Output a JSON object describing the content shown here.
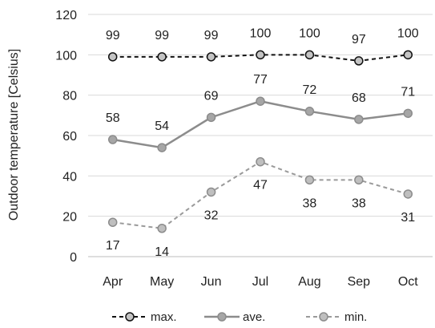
{
  "chart_data": {
    "type": "line",
    "title": "",
    "xlabel": "",
    "ylabel": "Outdoor temperature [Celsius]",
    "ylim": [
      0,
      120
    ],
    "yticks": [
      0,
      20,
      40,
      60,
      80,
      100,
      120
    ],
    "grid": true,
    "legend_position": "bottom",
    "categories": [
      "Apr",
      "May",
      "Jun",
      "Jul",
      "Aug",
      "Sep",
      "Oct"
    ],
    "series": [
      {
        "name": "max.",
        "values": [
          99,
          99,
          99,
          100,
          100,
          97,
          100
        ],
        "line_color": "#111111",
        "marker_fill": "#c4c4c4",
        "dashed": true,
        "label_position": "above"
      },
      {
        "name": "ave.",
        "values": [
          58,
          54,
          69,
          77,
          72,
          68,
          71
        ],
        "line_color": "#8c8c8c",
        "marker_fill": "#a6a6a6",
        "dashed": false,
        "label_position": "above"
      },
      {
        "name": "min.",
        "values": [
          17,
          14,
          32,
          47,
          38,
          38,
          31
        ],
        "line_color": "#9a9a9a",
        "marker_fill": "#bfbfbf",
        "dashed": true,
        "label_position": "below"
      }
    ]
  }
}
